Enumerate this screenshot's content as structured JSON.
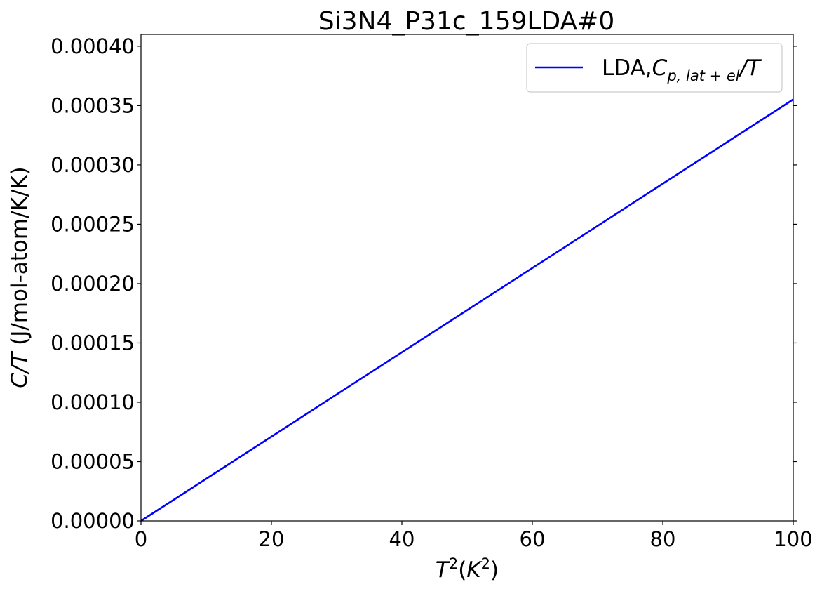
{
  "chart_data": {
    "type": "line",
    "title": "Si3N4_P31c_159LDA#0",
    "xlabel": {
      "T": "T",
      "exp_2": "2",
      "open": "(",
      "K": "K",
      "exp_2b": "2",
      "close": ")"
    },
    "ylabel": {
      "CT": "C/T",
      "units": " (J/mol-atom/K/K)"
    },
    "xlim": [
      0,
      100
    ],
    "ylim": [
      0,
      0.00041
    ],
    "x_ticks": [
      0,
      20,
      40,
      60,
      80,
      100
    ],
    "x_tick_labels": [
      "0",
      "20",
      "40",
      "60",
      "80",
      "100"
    ],
    "y_ticks": [
      0,
      5e-05,
      0.0001,
      0.00015,
      0.0002,
      0.00025,
      0.0003,
      0.00035,
      0.0004
    ],
    "y_tick_labels": [
      "0.00000",
      "0.00005",
      "0.00010",
      "0.00015",
      "0.00020",
      "0.00025",
      "0.00030",
      "0.00035",
      "0.00040"
    ],
    "grid": false,
    "legend_position": "top-right",
    "legend": {
      "prefix": "LDA,",
      "C": "C",
      "sub": "p, lat + el",
      "suffix": "/T"
    },
    "series": [
      {
        "color": "#0000ff",
        "x": [
          0,
          10,
          20,
          30,
          40,
          50,
          60,
          70,
          80,
          90,
          100
        ],
        "y": [
          0,
          3.55e-05,
          7.1e-05,
          0.0001066,
          0.0001421,
          0.0001776,
          0.0002131,
          0.0002486,
          0.0002842,
          0.0003197,
          0.0003552
        ]
      }
    ]
  }
}
